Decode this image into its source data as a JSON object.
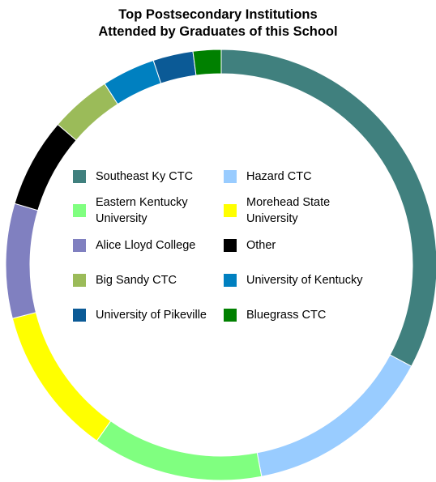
{
  "chart_data": {
    "type": "pie",
    "style": "donut",
    "title_lines": [
      "Top Postsecondary Institutions",
      "Attended by Graduates of this School"
    ],
    "legend_position": "center",
    "slices": [
      {
        "label": "Southeast Ky CTC",
        "value": 32.8,
        "color": "#40807E"
      },
      {
        "label": "Hazard CTC",
        "value": 14.2,
        "color": "#99CCFF"
      },
      {
        "label": "Eastern Kentucky University",
        "value": 12.8,
        "color": "#80FF80"
      },
      {
        "label": "Morehead State University",
        "value": 11.2,
        "color": "#FFFF00"
      },
      {
        "label": "Alice Lloyd College",
        "value": 8.6,
        "color": "#8080C0"
      },
      {
        "label": "Other",
        "value": 6.7,
        "color": "#000000"
      },
      {
        "label": "Big Sandy CTC",
        "value": 4.6,
        "color": "#9BBB59"
      },
      {
        "label": "University of Kentucky",
        "value": 4.0,
        "color": "#0080C0"
      },
      {
        "label": "University of Pikeville",
        "value": 3.0,
        "color": "#0B5A96"
      },
      {
        "label": "Bluegrass CTC",
        "value": 2.1,
        "color": "#008000"
      }
    ]
  }
}
